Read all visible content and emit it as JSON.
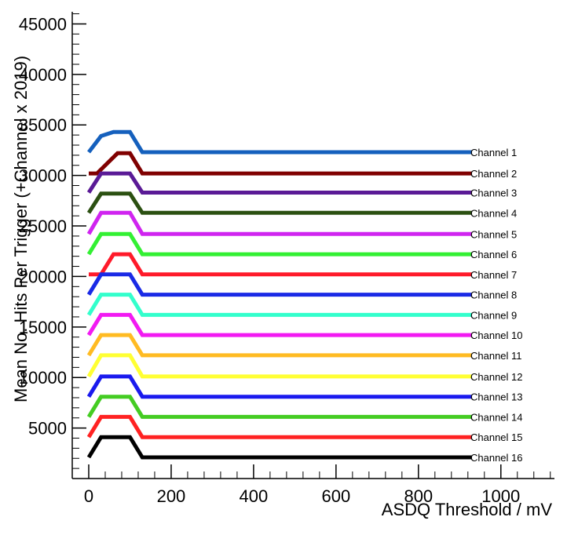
{
  "chart_data": {
    "type": "line",
    "title": "",
    "xlabel": "ASDQ Threshold / mV",
    "ylabel": "Mean No. Hits Per Trigger (+Channel x 2019)",
    "xlim": [
      -40,
      1130
    ],
    "ylim": [
      0,
      46200
    ],
    "xticks": [
      0,
      200,
      400,
      600,
      800,
      1000
    ],
    "xtick_labels": [
      "0",
      "200",
      "400",
      "600",
      "800",
      "1000"
    ],
    "yticks": [
      5000,
      10000,
      15000,
      20000,
      25000,
      30000,
      35000,
      40000,
      45000
    ],
    "ytick_labels": [
      "5000",
      "10000",
      "15000",
      "20000",
      "25000",
      "30000",
      "35000",
      "40000",
      "45000"
    ],
    "grid": false,
    "legend": "labels at right end of each series",
    "series": [
      {
        "name": "Channel 1",
        "color": "#1560bd",
        "x": [
          0,
          30,
          60,
          100,
          130,
          930
        ],
        "y": [
          32300,
          33900,
          34300,
          34300,
          32300,
          32300
        ]
      },
      {
        "name": "Channel 2",
        "color": "#800000",
        "x": [
          0,
          20,
          70,
          100,
          130,
          930
        ],
        "y": [
          30200,
          30200,
          32200,
          32200,
          30200,
          30200
        ]
      },
      {
        "name": "Channel 3",
        "color": "#5a1a96",
        "x": [
          0,
          30,
          100,
          130,
          930
        ],
        "y": [
          28300,
          30200,
          30200,
          28300,
          28300
        ]
      },
      {
        "name": "Channel 4",
        "color": "#2b5011",
        "x": [
          0,
          30,
          100,
          130,
          930
        ],
        "y": [
          26300,
          28200,
          28200,
          26300,
          26300
        ]
      },
      {
        "name": "Channel 5",
        "color": "#d024f0",
        "x": [
          0,
          30,
          100,
          130,
          930
        ],
        "y": [
          24200,
          26300,
          26300,
          24200,
          24200
        ]
      },
      {
        "name": "Channel 6",
        "color": "#33f033",
        "x": [
          0,
          30,
          100,
          130,
          930
        ],
        "y": [
          22200,
          24200,
          24200,
          22200,
          22200
        ]
      },
      {
        "name": "Channel 7",
        "color": "#ff1a2a",
        "x": [
          0,
          30,
          60,
          100,
          130,
          930
        ],
        "y": [
          20200,
          20200,
          22200,
          22200,
          20200,
          20200
        ]
      },
      {
        "name": "Channel 8",
        "color": "#1a2ae6",
        "x": [
          0,
          30,
          100,
          130,
          930
        ],
        "y": [
          18200,
          20200,
          20200,
          18200,
          18200
        ]
      },
      {
        "name": "Channel 9",
        "color": "#33ffcc",
        "x": [
          0,
          30,
          100,
          130,
          930
        ],
        "y": [
          16200,
          18200,
          18200,
          16200,
          16200
        ]
      },
      {
        "name": "Channel 10",
        "color": "#f21af2",
        "x": [
          0,
          30,
          100,
          130,
          930
        ],
        "y": [
          14200,
          16200,
          16200,
          14200,
          14200
        ]
      },
      {
        "name": "Channel 11",
        "color": "#ffbb22",
        "x": [
          0,
          30,
          100,
          130,
          930
        ],
        "y": [
          12200,
          14200,
          14200,
          12200,
          12200
        ]
      },
      {
        "name": "Channel 12",
        "color": "#ffff33",
        "x": [
          0,
          30,
          100,
          130,
          930
        ],
        "y": [
          10100,
          12200,
          12200,
          10100,
          10100
        ]
      },
      {
        "name": "Channel 13",
        "color": "#1a1aee",
        "x": [
          0,
          30,
          100,
          130,
          930
        ],
        "y": [
          8100,
          10100,
          10100,
          8100,
          8100
        ]
      },
      {
        "name": "Channel 14",
        "color": "#44cc22",
        "x": [
          0,
          30,
          100,
          130,
          930
        ],
        "y": [
          6100,
          8100,
          8100,
          6100,
          6100
        ]
      },
      {
        "name": "Channel 15",
        "color": "#ff2222",
        "x": [
          0,
          30,
          100,
          130,
          930
        ],
        "y": [
          4100,
          6100,
          6100,
          4100,
          4100
        ]
      },
      {
        "name": "Channel 16",
        "color": "#000000",
        "x": [
          0,
          30,
          100,
          130,
          930
        ],
        "y": [
          2100,
          4100,
          4100,
          2100,
          2100
        ]
      }
    ]
  }
}
